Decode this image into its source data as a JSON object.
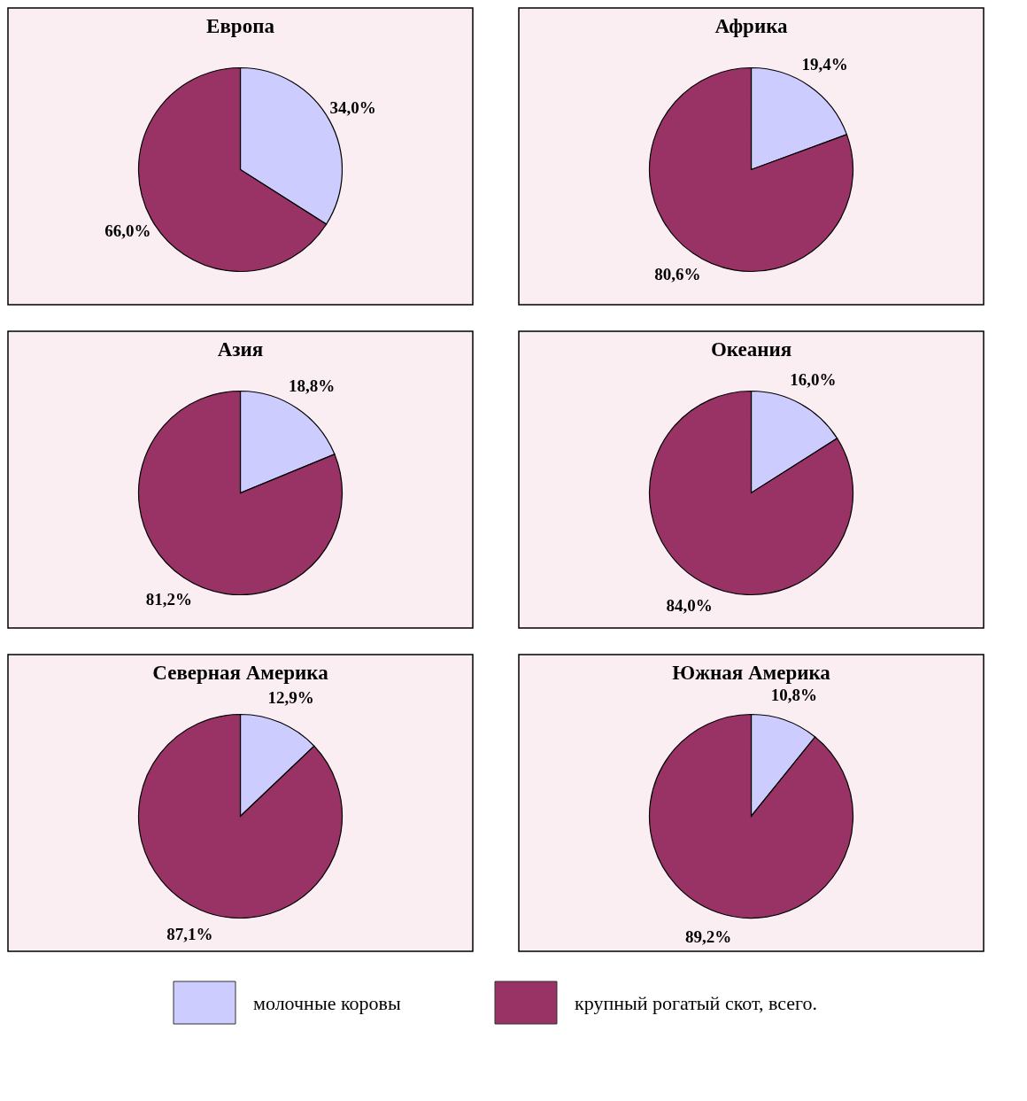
{
  "chart_data": [
    {
      "type": "pie",
      "title": "Европа",
      "categories": [
        "молочные коровы",
        "крупный рогатый скот, всего."
      ],
      "values": [
        34.0,
        66.0
      ],
      "value_labels": [
        "34,0%",
        "66,0%"
      ],
      "colors": [
        "#ccccff",
        "#993366"
      ],
      "legend": "bottom"
    },
    {
      "type": "pie",
      "title": "Африка",
      "categories": [
        null,
        null
      ],
      "values": [
        19.4,
        80.6
      ],
      "value_labels": [
        "19,4%",
        "80,6%"
      ],
      "colors": [
        "#ccccff",
        "#993366"
      ]
    },
    {
      "type": "pie",
      "title": "Азия",
      "categories": [
        null,
        null
      ],
      "values": [
        18.8,
        81.2
      ],
      "value_labels": [
        "18,8%",
        "81,2%"
      ],
      "colors": [
        "#ccccff",
        "#993366"
      ]
    },
    {
      "type": "pie",
      "title": "Океания",
      "categories": [
        null,
        null
      ],
      "values": [
        16.0,
        84.0
      ],
      "value_labels": [
        "16,0%",
        "84,0%"
      ],
      "colors": [
        "#ccccff",
        "#993366"
      ]
    },
    {
      "type": "pie",
      "title": "Северная Америка",
      "categories": [
        null,
        null
      ],
      "values": [
        12.9,
        87.1
      ],
      "value_labels": [
        "12,9%",
        "87,1%"
      ],
      "colors": [
        "#ccccff",
        "#993366"
      ]
    },
    {
      "type": "pie",
      "title": "Южная Америка",
      "categories": [
        null,
        null
      ],
      "values": [
        10.8,
        89.2
      ],
      "value_labels": [
        "10,8%",
        "89,2%"
      ],
      "colors": [
        "#ccccff",
        "#993366"
      ]
    }
  ]
}
